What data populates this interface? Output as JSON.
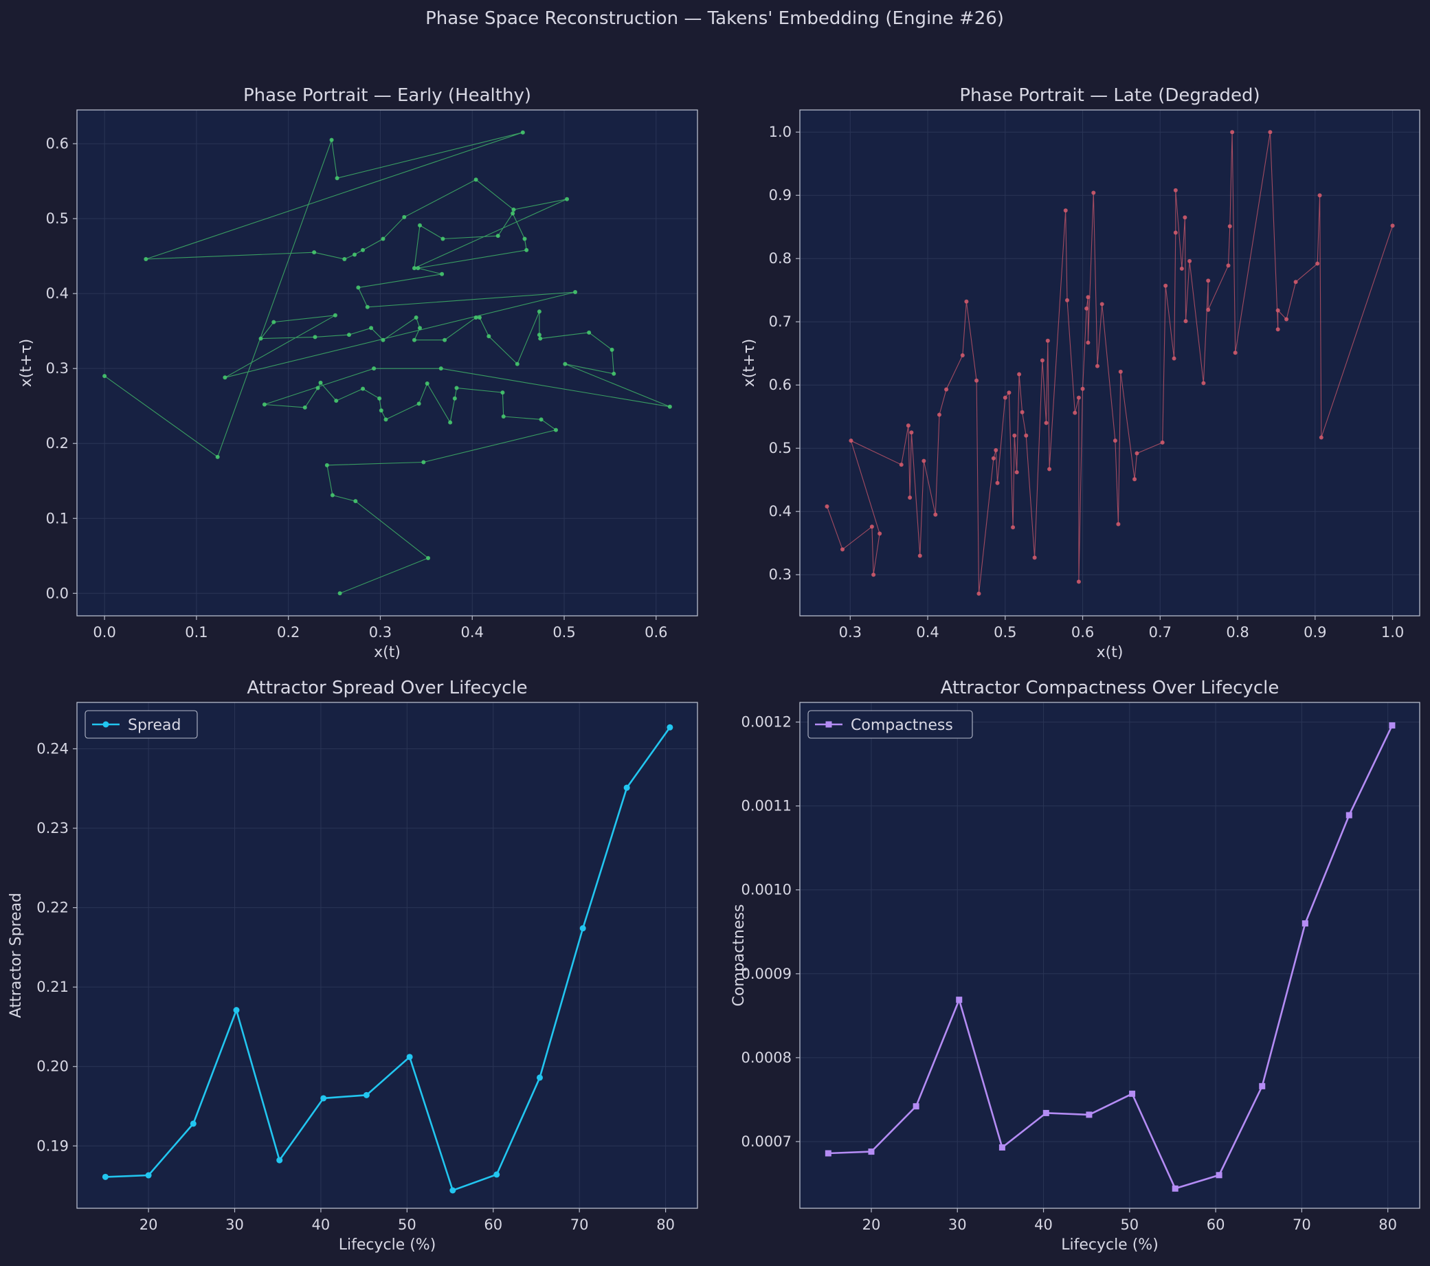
{
  "figure": {
    "suptitle": "Phase Space Reconstruction — Takens' Embedding (Engine #26)"
  },
  "colors": {
    "figure_bg": "#1b1c30",
    "axes_bg": "#172142",
    "spine": "#b7bccc",
    "grid": "#2a3556",
    "text": "#d8d8e4",
    "early": "#46c86e",
    "late": "#d05a6c",
    "spread": "#22c6f0",
    "compactness": "#b48cf4"
  },
  "chart_data": [
    {
      "type": "scatter",
      "title": "Phase Portrait — Early (Healthy)",
      "xlabel": "x(t)",
      "ylabel": "x(t+τ)",
      "xlim": [
        -0.03,
        0.645
      ],
      "ylim": [
        -0.03,
        0.645
      ],
      "xticks": [
        "0.0",
        "0.1",
        "0.2",
        "0.3",
        "0.4",
        "0.5",
        "0.6"
      ],
      "yticks": [
        "0.0",
        "0.1",
        "0.2",
        "0.3",
        "0.4",
        "0.5",
        "0.6"
      ],
      "grid": true,
      "connected": true,
      "color_key": "early",
      "points": [
        [
          0.0,
          0.29
        ],
        [
          0.123,
          0.182
        ],
        [
          0.247,
          0.605
        ],
        [
          0.253,
          0.554
        ],
        [
          0.455,
          0.615
        ],
        [
          0.045,
          0.446
        ],
        [
          0.228,
          0.455
        ],
        [
          0.261,
          0.446
        ],
        [
          0.272,
          0.452
        ],
        [
          0.281,
          0.458
        ],
        [
          0.303,
          0.473
        ],
        [
          0.326,
          0.502
        ],
        [
          0.404,
          0.552
        ],
        [
          0.445,
          0.512
        ],
        [
          0.503,
          0.526
        ],
        [
          0.337,
          0.434
        ],
        [
          0.343,
          0.491
        ],
        [
          0.368,
          0.473
        ],
        [
          0.428,
          0.477
        ],
        [
          0.444,
          0.507
        ],
        [
          0.457,
          0.473
        ],
        [
          0.459,
          0.458
        ],
        [
          0.341,
          0.434
        ],
        [
          0.367,
          0.426
        ],
        [
          0.276,
          0.408
        ],
        [
          0.286,
          0.382
        ],
        [
          0.512,
          0.402
        ],
        [
          0.131,
          0.288
        ],
        [
          0.251,
          0.371
        ],
        [
          0.184,
          0.362
        ],
        [
          0.17,
          0.34
        ],
        [
          0.229,
          0.342
        ],
        [
          0.266,
          0.345
        ],
        [
          0.29,
          0.354
        ],
        [
          0.303,
          0.338
        ],
        [
          0.339,
          0.368
        ],
        [
          0.343,
          0.354
        ],
        [
          0.337,
          0.338
        ],
        [
          0.37,
          0.338
        ],
        [
          0.404,
          0.368
        ],
        [
          0.408,
          0.368
        ],
        [
          0.418,
          0.343
        ],
        [
          0.449,
          0.306
        ],
        [
          0.473,
          0.376
        ],
        [
          0.473,
          0.345
        ],
        [
          0.474,
          0.34
        ],
        [
          0.527,
          0.348
        ],
        [
          0.552,
          0.325
        ],
        [
          0.554,
          0.293
        ],
        [
          0.501,
          0.306
        ],
        [
          0.615,
          0.249
        ],
        [
          0.366,
          0.3
        ],
        [
          0.293,
          0.3
        ],
        [
          0.174,
          0.252
        ],
        [
          0.218,
          0.248
        ],
        [
          0.232,
          0.274
        ],
        [
          0.235,
          0.281
        ],
        [
          0.252,
          0.257
        ],
        [
          0.281,
          0.273
        ],
        [
          0.299,
          0.26
        ],
        [
          0.301,
          0.244
        ],
        [
          0.306,
          0.232
        ],
        [
          0.342,
          0.253
        ],
        [
          0.351,
          0.28
        ],
        [
          0.376,
          0.228
        ],
        [
          0.381,
          0.26
        ],
        [
          0.383,
          0.274
        ],
        [
          0.433,
          0.268
        ],
        [
          0.434,
          0.236
        ],
        [
          0.475,
          0.232
        ],
        [
          0.491,
          0.218
        ],
        [
          0.347,
          0.175
        ],
        [
          0.242,
          0.171
        ],
        [
          0.248,
          0.131
        ],
        [
          0.273,
          0.123
        ],
        [
          0.352,
          0.047
        ],
        [
          0.256,
          0.0
        ]
      ]
    },
    {
      "type": "scatter",
      "title": "Phase Portrait — Late (Degraded)",
      "xlabel": "x(t)",
      "ylabel": "x(t+τ)",
      "xlim": [
        0.235,
        1.035
      ],
      "ylim": [
        0.235,
        1.035
      ],
      "xticks": [
        "0.3",
        "0.4",
        "0.5",
        "0.6",
        "0.7",
        "0.8",
        "0.9",
        "1.0"
      ],
      "yticks": [
        "0.3",
        "0.4",
        "0.5",
        "0.6",
        "0.7",
        "0.8",
        "0.9",
        "1.0"
      ],
      "grid": true,
      "connected": true,
      "color_key": "late",
      "points": [
        [
          0.27,
          0.408
        ],
        [
          0.29,
          0.34
        ],
        [
          0.328,
          0.376
        ],
        [
          0.33,
          0.3
        ],
        [
          0.338,
          0.365
        ],
        [
          0.301,
          0.512
        ],
        [
          0.366,
          0.474
        ],
        [
          0.375,
          0.536
        ],
        [
          0.377,
          0.422
        ],
        [
          0.379,
          0.525
        ],
        [
          0.39,
          0.33
        ],
        [
          0.395,
          0.48
        ],
        [
          0.41,
          0.395
        ],
        [
          0.415,
          0.553
        ],
        [
          0.424,
          0.593
        ],
        [
          0.445,
          0.647
        ],
        [
          0.45,
          0.732
        ],
        [
          0.463,
          0.607
        ],
        [
          0.466,
          0.27
        ],
        [
          0.485,
          0.484
        ],
        [
          0.488,
          0.497
        ],
        [
          0.49,
          0.445
        ],
        [
          0.5,
          0.58
        ],
        [
          0.505,
          0.588
        ],
        [
          0.51,
          0.375
        ],
        [
          0.512,
          0.52
        ],
        [
          0.515,
          0.462
        ],
        [
          0.518,
          0.617
        ],
        [
          0.522,
          0.557
        ],
        [
          0.527,
          0.52
        ],
        [
          0.538,
          0.327
        ],
        [
          0.548,
          0.639
        ],
        [
          0.553,
          0.54
        ],
        [
          0.555,
          0.67
        ],
        [
          0.557,
          0.467
        ],
        [
          0.578,
          0.876
        ],
        [
          0.58,
          0.734
        ],
        [
          0.59,
          0.556
        ],
        [
          0.595,
          0.58
        ],
        [
          0.595,
          0.289
        ],
        [
          0.6,
          0.594
        ],
        [
          0.605,
          0.721
        ],
        [
          0.607,
          0.739
        ],
        [
          0.607,
          0.667
        ],
        [
          0.614,
          0.904
        ],
        [
          0.619,
          0.63
        ],
        [
          0.625,
          0.728
        ],
        [
          0.642,
          0.512
        ],
        [
          0.646,
          0.38
        ],
        [
          0.649,
          0.621
        ],
        [
          0.667,
          0.451
        ],
        [
          0.67,
          0.492
        ],
        [
          0.703,
          0.509
        ],
        [
          0.707,
          0.757
        ],
        [
          0.718,
          0.642
        ],
        [
          0.72,
          0.841
        ],
        [
          0.72,
          0.908
        ],
        [
          0.728,
          0.784
        ],
        [
          0.732,
          0.865
        ],
        [
          0.733,
          0.701
        ],
        [
          0.738,
          0.796
        ],
        [
          0.756,
          0.603
        ],
        [
          0.762,
          0.765
        ],
        [
          0.762,
          0.719
        ],
        [
          0.788,
          0.789
        ],
        [
          0.79,
          0.851
        ],
        [
          0.793,
          1.0
        ],
        [
          0.797,
          0.651
        ],
        [
          0.842,
          1.0
        ],
        [
          0.852,
          0.688
        ],
        [
          0.852,
          0.718
        ],
        [
          0.863,
          0.704
        ],
        [
          0.875,
          0.763
        ],
        [
          0.903,
          0.792
        ],
        [
          0.906,
          0.9
        ],
        [
          0.908,
          0.517
        ],
        [
          1.0,
          0.852
        ]
      ]
    },
    {
      "type": "line",
      "title": "Attractor Spread Over Lifecycle",
      "xlabel": "Lifecycle (%)",
      "ylabel": "Attractor Spread",
      "xlim": [
        11.7,
        83.7
      ],
      "ylim": [
        0.18215,
        0.24584
      ],
      "xticks": [
        "20",
        "30",
        "40",
        "50",
        "60",
        "70",
        "80"
      ],
      "yticks": [
        "0.19",
        "0.20",
        "0.21",
        "0.22",
        "0.23",
        "0.24"
      ],
      "grid": true,
      "legend": "top-left",
      "marker": "circle",
      "color_key": "spread",
      "series": [
        {
          "name": "Spread",
          "x": [
            15,
            20,
            25.2,
            30.2,
            35.2,
            40.3,
            45.3,
            50.3,
            55.3,
            60.4,
            65.4,
            70.4,
            75.5,
            80.5
          ],
          "values": [
            0.1861,
            0.1863,
            0.1928,
            0.2071,
            0.1882,
            0.196,
            0.1964,
            0.2012,
            0.1844,
            0.1864,
            0.1986,
            0.2174,
            0.2351,
            0.2427
          ]
        }
      ]
    },
    {
      "type": "line",
      "title": "Attractor Compactness Over Lifecycle",
      "xlabel": "Lifecycle (%)",
      "ylabel": "Compactness",
      "xlim": [
        11.7,
        83.7
      ],
      "ylim": [
        0.0006205,
        0.0012234
      ],
      "xticks": [
        "20",
        "30",
        "40",
        "50",
        "60",
        "70",
        "80"
      ],
      "yticks": [
        "0.0007",
        "0.0008",
        "0.0009",
        "0.0010",
        "0.0011",
        "0.0012"
      ],
      "grid": true,
      "legend": "top-left",
      "marker": "square",
      "color_key": "compactness",
      "series": [
        {
          "name": "Compactness",
          "x": [
            15,
            20,
            25.2,
            30.2,
            35.2,
            40.3,
            45.3,
            50.3,
            55.3,
            60.4,
            65.4,
            70.4,
            75.5,
            80.5
          ],
          "values": [
            0.000686,
            0.000688,
            0.000742,
            0.000869,
            0.000693,
            0.000734,
            0.000732,
            0.000757,
            0.000644,
            0.00066,
            0.000766,
            0.00096,
            0.001089,
            0.001196
          ]
        }
      ]
    }
  ]
}
